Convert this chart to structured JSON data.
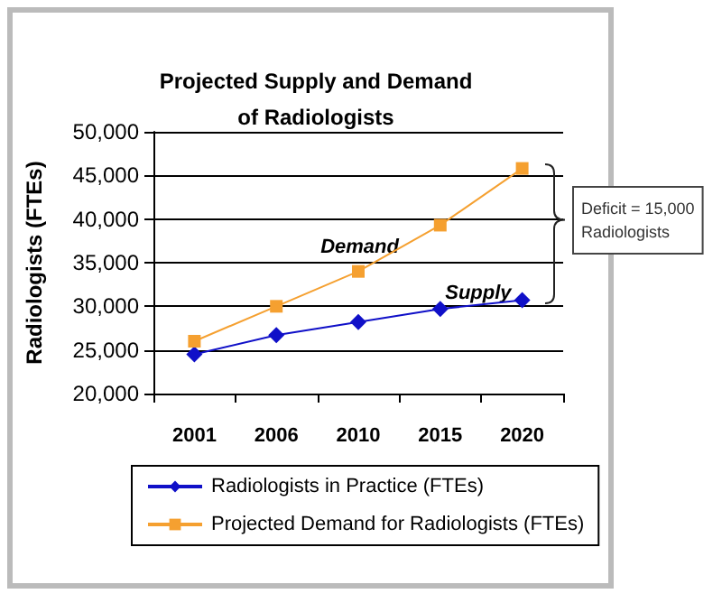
{
  "chart_data": {
    "type": "line",
    "title": "Projected Supply and Demand\nof Radiologists",
    "ylabel": "Radiologists (FTEs)",
    "categories": [
      "2001",
      "2006",
      "2010",
      "2015",
      "2020"
    ],
    "series": [
      {
        "name": "Radiologists in Practice (FTEs)",
        "color": "#1010c8",
        "marker": "diamond",
        "values": [
          24500,
          26700,
          28200,
          29700,
          30700
        ]
      },
      {
        "name": "Projected Demand for Radiologists (FTEs)",
        "color": "#f5a030",
        "marker": "square",
        "values": [
          26000,
          30000,
          34000,
          39300,
          45800
        ]
      }
    ],
    "ylim": [
      20000,
      50000
    ],
    "yticks": [
      {
        "value": 20000,
        "label": "20,000"
      },
      {
        "value": 25000,
        "label": "25,000"
      },
      {
        "value": 30000,
        "label": "30,000"
      },
      {
        "value": 35000,
        "label": "35,000"
      },
      {
        "value": 40000,
        "label": "40,000"
      },
      {
        "value": 45000,
        "label": "45,000"
      },
      {
        "value": 50000,
        "label": "50,000"
      }
    ],
    "grid": "y",
    "legend": "bottom",
    "annotations": [
      "Demand",
      {
        "text": "Supply",
        "x": "2020",
        "y": 31500
      },
      "Deficit = 15,000\nRadiologists"
    ]
  }
}
